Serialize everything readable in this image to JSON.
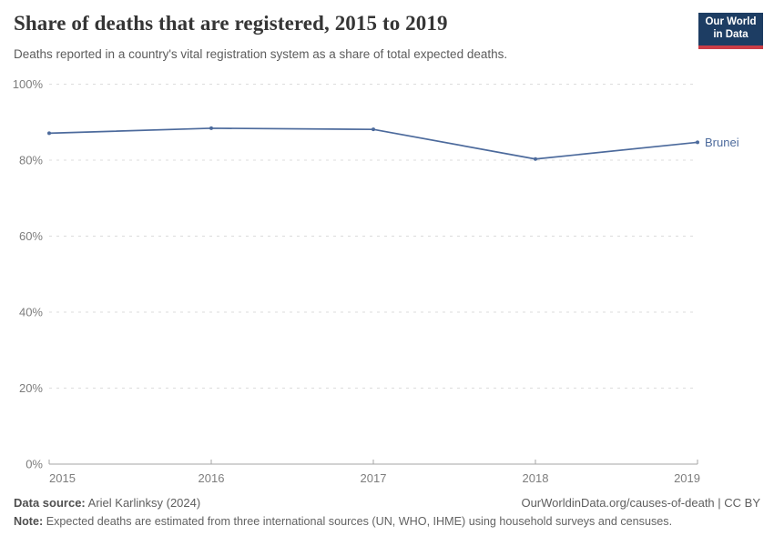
{
  "header": {
    "title": "Share of deaths that are registered, 2015 to 2019",
    "subtitle": "Deaths reported in a country's vital registration system as a share of total expected deaths."
  },
  "logo": {
    "line1": "Our World",
    "line2": "in Data",
    "bg_color": "#1d3d63",
    "accent_color": "#cb3d46"
  },
  "chart_data": {
    "type": "line",
    "title": "Share of deaths that are registered, 2015 to 2019",
    "x": [
      2015,
      2016,
      2017,
      2018,
      2019
    ],
    "series": [
      {
        "name": "Brunei",
        "color": "#4c6a9c",
        "values": [
          87.1,
          88.4,
          88.1,
          80.3,
          84.7
        ]
      }
    ],
    "ylim": [
      0,
      100
    ],
    "yticks": [
      0,
      20,
      40,
      60,
      80,
      100
    ],
    "ytick_suffix": "%",
    "grid": "dashed horizontal gridlines",
    "legend_position": "end-of-line label"
  },
  "footer": {
    "source_label": "Data source:",
    "source_text": "Ariel Karlinksy (2024)",
    "credit_text": "OurWorldinData.org/causes-of-death | CC BY",
    "note_label": "Note:",
    "note_text": "Expected deaths are estimated from three international sources (UN, WHO, IHME) using household surveys and censuses."
  }
}
